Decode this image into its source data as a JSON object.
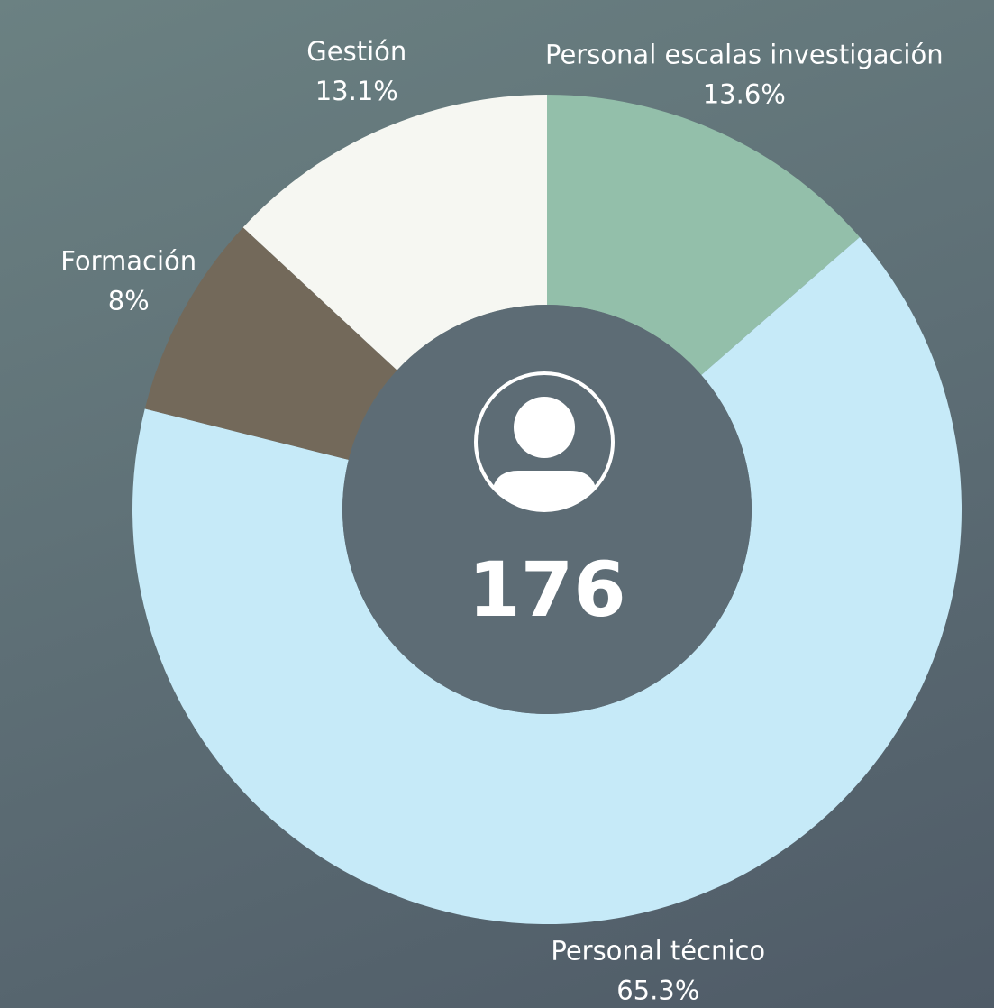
{
  "chart_data": {
    "type": "donut",
    "categories": [
      "Personal escalas investigación",
      "Personal técnico",
      "Formación",
      "Gestión"
    ],
    "values": [
      13.6,
      65.3,
      8,
      13.1
    ],
    "value_labels": [
      "13.6%",
      "65.3%",
      "8%",
      "13.1%"
    ],
    "colors": [
      "#93bfaa",
      "#c6eaf8",
      "#73695a",
      "#f6f7f2"
    ],
    "center_text": "176"
  }
}
